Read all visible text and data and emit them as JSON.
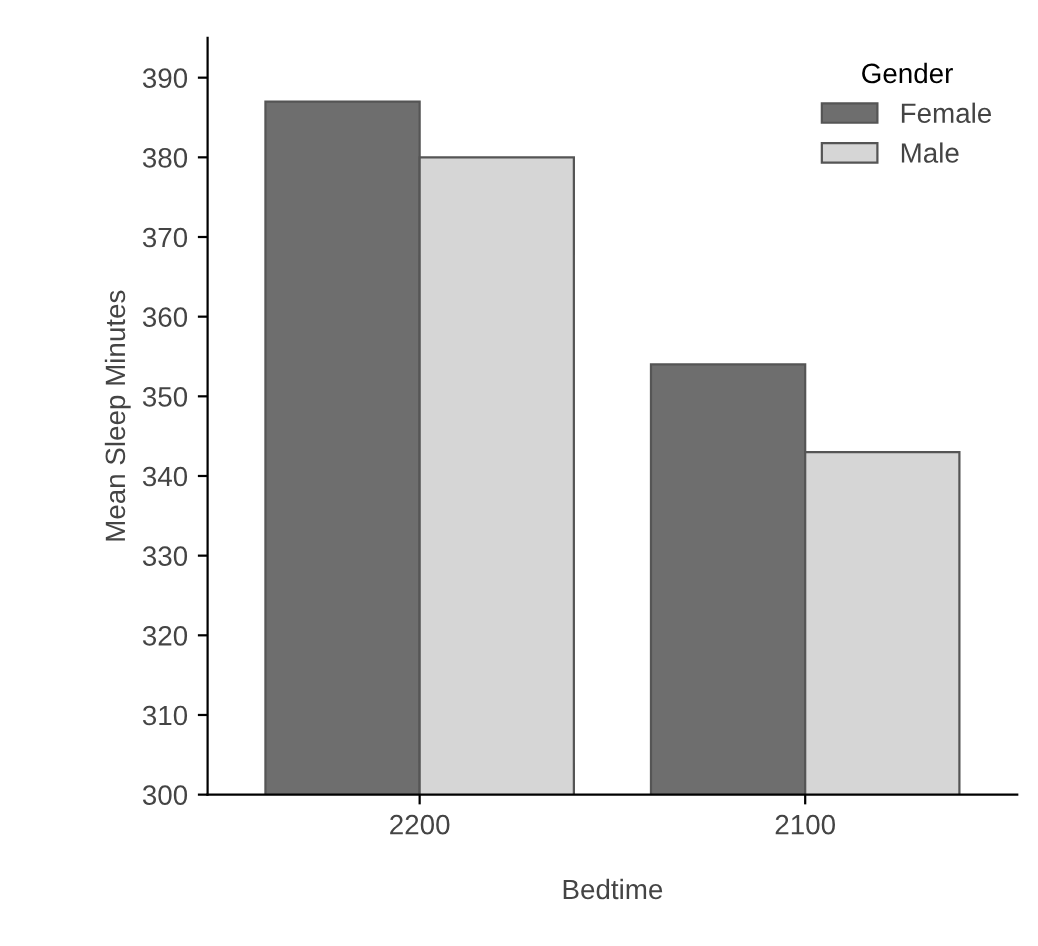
{
  "chart_data": {
    "type": "bar",
    "xlabel": "Bedtime",
    "ylabel": "Mean Sleep Minutes",
    "legend_title": "Gender",
    "categories": [
      "2200",
      "2100"
    ],
    "series": [
      {
        "name": "Female",
        "color": "#6e6e6e",
        "values": [
          387,
          354
        ]
      },
      {
        "name": "Male",
        "color": "#d6d6d6",
        "values": [
          380,
          343
        ]
      }
    ],
    "ylim": [
      300,
      395
    ],
    "yticks": [
      300,
      310,
      320,
      330,
      340,
      350,
      360,
      370,
      380,
      390
    ],
    "grid": false,
    "legend": "top right"
  }
}
